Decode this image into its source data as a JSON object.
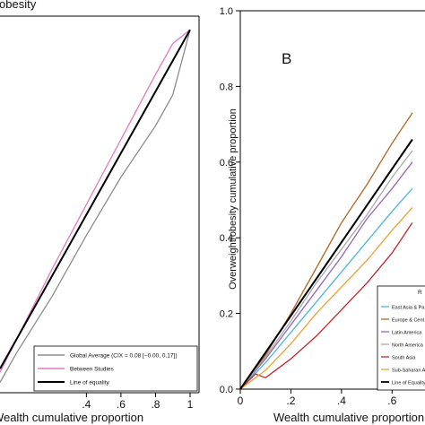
{
  "chart_data": [
    {
      "type": "line",
      "title": "obesity",
      "xlabel": "Wealth cumulative proportion",
      "ylabel": "",
      "xlim": [
        -0.1,
        1.0
      ],
      "ylim": [
        -0.06,
        1.04
      ],
      "x_ticks": [
        0.4,
        0.6,
        0.8,
        1
      ],
      "x_tick_labels": [
        ".4",
        ".6",
        ".8",
        "1"
      ],
      "legend_position": "bottom-right",
      "series": [
        {
          "name": "Global Average (CIX = 0.08 [−0.00, 0.17])",
          "color": "#8c8c8c",
          "x": [
            -0.1,
            0.0,
            0.2,
            0.4,
            0.6,
            0.8,
            0.9,
            1.0
          ],
          "y": [
            -0.03,
            0.06,
            0.22,
            0.4,
            0.57,
            0.72,
            0.81,
            1.0
          ]
        },
        {
          "name": "Between Studies",
          "color": "#e377c2",
          "x": [
            -0.1,
            0.0,
            0.2,
            0.4,
            0.6,
            0.8,
            0.9,
            1.0
          ],
          "y": [
            0.0,
            0.1,
            0.3,
            0.49,
            0.68,
            0.87,
            0.96,
            1.0
          ]
        },
        {
          "name": "Line of equality",
          "color": "#000000",
          "x": [
            -0.1,
            1.0
          ],
          "y": [
            0.01,
            1.0
          ]
        }
      ]
    },
    {
      "type": "line",
      "title": "",
      "panel_label": "B",
      "xlabel": "Wealth cumulative proportion",
      "ylabel": "Overweight/obesity cumulative proportion",
      "xlim": [
        0,
        0.73
      ],
      "ylim": [
        0,
        1.0
      ],
      "x_ticks": [
        0,
        0.2,
        0.4,
        0.6
      ],
      "x_tick_labels": [
        "0",
        ".2",
        ".4",
        ".6"
      ],
      "y_ticks": [
        0,
        0.2,
        0.4,
        0.6,
        0.8,
        1.0
      ],
      "y_tick_labels": [
        "0.0",
        "0.2",
        "0.4",
        "0.6",
        "0.8",
        "1.0"
      ],
      "legend_title": "R",
      "legend_position": "bottom-right",
      "series": [
        {
          "name": "East Asia & Pa",
          "color": "#4fb3e6",
          "x": [
            0,
            0.1,
            0.2,
            0.3,
            0.4,
            0.5,
            0.6,
            0.68
          ],
          "y": [
            0,
            0.07,
            0.15,
            0.23,
            0.31,
            0.39,
            0.47,
            0.53
          ]
        },
        {
          "name": "Europe & Cent",
          "color": "#b5651d",
          "x": [
            0,
            0.1,
            0.2,
            0.3,
            0.4,
            0.5,
            0.6,
            0.68
          ],
          "y": [
            0,
            0.09,
            0.2,
            0.32,
            0.44,
            0.54,
            0.65,
            0.73
          ]
        },
        {
          "name": "Latin America",
          "color": "#9467bd",
          "x": [
            0,
            0.1,
            0.2,
            0.3,
            0.4,
            0.5,
            0.6,
            0.68
          ],
          "y": [
            0,
            0.08,
            0.17,
            0.26,
            0.35,
            0.45,
            0.53,
            0.6
          ]
        },
        {
          "name": "North America",
          "color": "#aaaaaa",
          "x": [
            0,
            0.1,
            0.2,
            0.3,
            0.4,
            0.5,
            0.6,
            0.68
          ],
          "y": [
            0,
            0.085,
            0.18,
            0.28,
            0.37,
            0.46,
            0.56,
            0.63
          ]
        },
        {
          "name": "South Asia",
          "color": "#c1272d",
          "x": [
            0,
            0.06,
            0.1,
            0.2,
            0.3,
            0.4,
            0.5,
            0.6,
            0.68
          ],
          "y": [
            0,
            0.04,
            0.03,
            0.08,
            0.14,
            0.21,
            0.28,
            0.36,
            0.44
          ]
        },
        {
          "name": "Sub-Saharan A",
          "color": "#f0a030",
          "x": [
            0,
            0.1,
            0.2,
            0.3,
            0.4,
            0.5,
            0.6,
            0.68
          ],
          "y": [
            0,
            0.05,
            0.12,
            0.2,
            0.27,
            0.34,
            0.42,
            0.48
          ]
        },
        {
          "name": "Line of Equality",
          "color": "#000000",
          "x": [
            0,
            0.68
          ],
          "y": [
            0,
            0.66
          ]
        }
      ]
    }
  ]
}
